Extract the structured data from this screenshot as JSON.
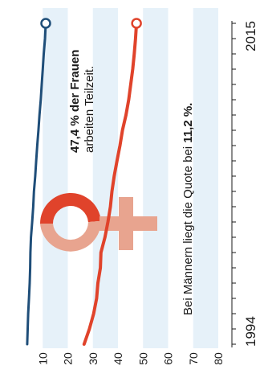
{
  "colors": {
    "women": "#e0432b",
    "men": "#1f4e79",
    "band": "#e6f1f9",
    "venus_top": "#e0432b",
    "venus_rest": "#e8a48f",
    "axis_text": "#1a1a1a"
  },
  "chart_data": {
    "type": "line",
    "orientation": "rotated-90-ccw",
    "title": "",
    "xlabel": "",
    "ylabel": "",
    "xlim": [
      1994,
      2015
    ],
    "ylim": [
      0,
      80
    ],
    "x_ticks_labeled": [
      "1994",
      "2015"
    ],
    "y_ticks": [
      "10",
      "20",
      "30",
      "40",
      "50",
      "60",
      "70",
      "80"
    ],
    "grid": "alternating bands",
    "series": [
      {
        "key": "women",
        "x": [
          1994,
          1995,
          1996,
          1997,
          1998,
          1999,
          2000,
          2001,
          2002,
          2003,
          2004,
          2005,
          2006,
          2007,
          2008,
          2009,
          2010,
          2011,
          2012,
          2013,
          2014,
          2015
        ],
        "values": [
          26.5,
          28.6,
          30.3,
          31.5,
          32.0,
          33.0,
          33.2,
          34.8,
          36.0,
          37.0,
          37.6,
          38.5,
          39.6,
          40.8,
          41.8,
          43.2,
          44.3,
          45.1,
          45.9,
          46.5,
          47.0,
          47.4
        ]
      },
      {
        "key": "men",
        "x": [
          1994,
          1995,
          1996,
          1997,
          1998,
          1999,
          2000,
          2001,
          2002,
          2003,
          2004,
          2005,
          2006,
          2007,
          2008,
          2009,
          2010,
          2011,
          2012,
          2013,
          2014,
          2015
        ],
        "values": [
          3.8,
          4.0,
          4.2,
          4.5,
          4.8,
          5.0,
          5.1,
          5.3,
          5.8,
          6.2,
          6.5,
          7.0,
          7.4,
          7.8,
          8.3,
          8.7,
          9.2,
          9.6,
          10.0,
          10.4,
          10.9,
          11.2
        ]
      }
    ],
    "annotations": {
      "women_bold": "47,4 % der Frauen",
      "women_rest": "arbeiten Teilzeit.",
      "men_prefix": "Bei Männern liegt die Quote bei ",
      "men_bold": "11,2 %."
    }
  }
}
